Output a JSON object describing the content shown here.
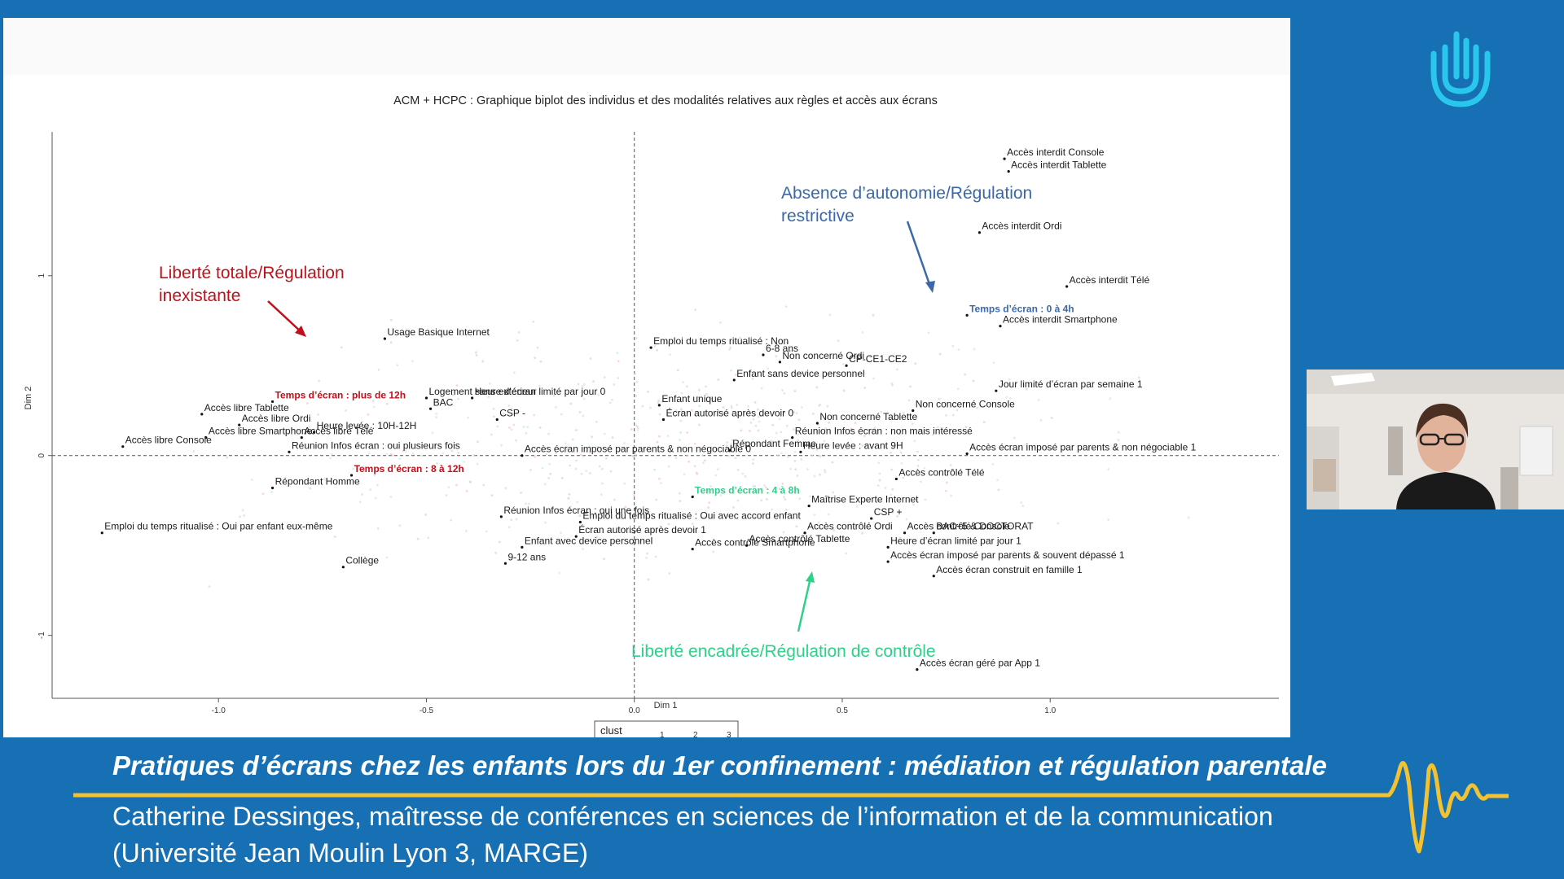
{
  "slide": {
    "chart_title": "ACM + HCPC : Graphique biplot des individus et des modalités relatives aux règles et accès aux écrans",
    "legend": {
      "title": "clust",
      "items": [
        "1",
        "2",
        "3"
      ]
    }
  },
  "annotations": {
    "red": {
      "line1": "Liberté totale/Régulation",
      "line2": "inexistante"
    },
    "blue": {
      "line1": "Absence d’autonomie/Régulation",
      "line2": "restrictive"
    },
    "green": {
      "line1": "Liberté encadrée/Régulation de contrôle"
    }
  },
  "colors": {
    "background": "#1670b3",
    "red": "#c0101a",
    "blue": "#3a68a8",
    "green": "#2fd08a",
    "gold": "#f2c232"
  },
  "chart_data": {
    "type": "scatter",
    "title": "ACM + HCPC : Graphique biplot des individus et des modalités relatives aux règles et accès aux écrans",
    "xlabel": "Dim 1",
    "ylabel": "Dim 2",
    "xlim": [
      -1.4,
      1.55
    ],
    "ylim": [
      -1.35,
      1.8
    ],
    "x_ticks": [
      "-1.0",
      "-0.5",
      "0.0",
      "0.5",
      "1.0"
    ],
    "y_ticks": [
      "-1",
      "0",
      "1"
    ],
    "legend": {
      "title": "clust",
      "items": [
        "1",
        "2",
        "3"
      ]
    },
    "points": [
      {
        "label": "Accès interdit Console",
        "x": 0.89,
        "y": 1.65
      },
      {
        "label": "Accès interdit Tablette",
        "x": 0.9,
        "y": 1.58
      },
      {
        "label": "Accès interdit Ordi",
        "x": 0.83,
        "y": 1.24
      },
      {
        "label": "Accès interdit Télé",
        "x": 1.04,
        "y": 0.94
      },
      {
        "label": "Temps d’écran : 0 à 4h",
        "x": 0.8,
        "y": 0.78,
        "color": "blue"
      },
      {
        "label": "Accès interdit Smartphone",
        "x": 0.88,
        "y": 0.72
      },
      {
        "label": "Jour limité d’écran par semaine 1",
        "x": 0.87,
        "y": 0.36
      },
      {
        "label": "Non concerné Console",
        "x": 0.67,
        "y": 0.25
      },
      {
        "label": "CP-CE1-CE2",
        "x": 0.51,
        "y": 0.5
      },
      {
        "label": "Non concerné Ordi",
        "x": 0.35,
        "y": 0.52
      },
      {
        "label": "6-8 ans",
        "x": 0.31,
        "y": 0.56
      },
      {
        "label": "Emploi du temps ritualisé : Non",
        "x": 0.04,
        "y": 0.6
      },
      {
        "label": "Enfant sans device personnel",
        "x": 0.24,
        "y": 0.42
      },
      {
        "label": "Enfant unique",
        "x": 0.06,
        "y": 0.28
      },
      {
        "label": "Écran autorisé après devoir 0",
        "x": 0.07,
        "y": 0.2
      },
      {
        "label": "Non concerné Tablette",
        "x": 0.44,
        "y": 0.18
      },
      {
        "label": "Réunion Infos écran : non mais intéressé",
        "x": 0.38,
        "y": 0.1
      },
      {
        "label": "Répondant Femme",
        "x": 0.23,
        "y": 0.03
      },
      {
        "label": "Heure levée : avant 9H",
        "x": 0.4,
        "y": 0.02
      },
      {
        "label": "Accès écran imposé par parents & non négociable 1",
        "x": 0.8,
        "y": 0.01
      },
      {
        "label": "Accès contrôlé Télé",
        "x": 0.63,
        "y": -0.13
      },
      {
        "label": "Maîtrise Experte Internet",
        "x": 0.42,
        "y": -0.28
      },
      {
        "label": "CSP +",
        "x": 0.57,
        "y": -0.35
      },
      {
        "label": "Accès contrôlé Ordi",
        "x": 0.41,
        "y": -0.43
      },
      {
        "label": "Accès contrôlé Console",
        "x": 0.65,
        "y": -0.43
      },
      {
        "label": "BAC+5 & DOCTORAT",
        "x": 0.72,
        "y": -0.43
      },
      {
        "label": "Accès contrôlé Tablette",
        "x": 0.27,
        "y": -0.5
      },
      {
        "label": "Heure d’écran limité par jour 1",
        "x": 0.61,
        "y": -0.51
      },
      {
        "label": "Accès contrôlé Smartphone",
        "x": 0.14,
        "y": -0.52
      },
      {
        "label": "Accès écran imposé par parents & souvent dépassé 1",
        "x": 0.61,
        "y": -0.59
      },
      {
        "label": "Accès écran construit en famille 1",
        "x": 0.72,
        "y": -0.67
      },
      {
        "label": "Temps d’écran : 4 à 8h",
        "x": 0.14,
        "y": -0.23,
        "color": "green"
      },
      {
        "label": "Emploi du temps ritualisé : Oui avec accord enfant",
        "x": -0.13,
        "y": -0.37
      },
      {
        "label": "Écran autorisé après devoir 1",
        "x": -0.14,
        "y": -0.45
      },
      {
        "label": "Accès écran géré par App 1",
        "x": 0.68,
        "y": -1.19
      },
      {
        "label": "Usage Basique Internet",
        "x": -0.6,
        "y": 0.65
      },
      {
        "label": "Logement sans extérieur",
        "x": -0.5,
        "y": 0.32
      },
      {
        "label": "Heure d’écran limité par jour 0",
        "x": -0.39,
        "y": 0.32
      },
      {
        "label": "BAC",
        "x": -0.49,
        "y": 0.26
      },
      {
        "label": "CSP -",
        "x": -0.33,
        "y": 0.2
      },
      {
        "label": "Accès écran imposé par parents & non négociable 0",
        "x": -0.27,
        "y": 0.0
      },
      {
        "label": "Temps d’écran : plus de 12h",
        "x": -0.87,
        "y": 0.3,
        "color": "red"
      },
      {
        "label": "Accès libre Tablette",
        "x": -1.04,
        "y": 0.23
      },
      {
        "label": "Accès libre Ordi",
        "x": -0.95,
        "y": 0.17
      },
      {
        "label": "Heure levée : 10H-12H",
        "x": -0.77,
        "y": 0.13
      },
      {
        "label": "Accès libre Smartphone",
        "x": -1.03,
        "y": 0.1
      },
      {
        "label": "Accès libre Télé",
        "x": -0.8,
        "y": 0.1
      },
      {
        "label": "Accès libre Console",
        "x": -1.23,
        "y": 0.05
      },
      {
        "label": "Réunion Infos écran : oui plusieurs fois",
        "x": -0.83,
        "y": 0.02
      },
      {
        "label": "Temps d’écran : 8 à 12h",
        "x": -0.68,
        "y": -0.11,
        "color": "red"
      },
      {
        "label": "Répondant Homme",
        "x": -0.87,
        "y": -0.18
      },
      {
        "label": "Réunion Infos écran : oui une fois",
        "x": -0.32,
        "y": -0.34
      },
      {
        "label": "Emploi du temps ritualisé : Oui par enfant eux-même",
        "x": -1.28,
        "y": -0.43
      },
      {
        "label": "Enfant avec device personnel",
        "x": -0.27,
        "y": -0.51
      },
      {
        "label": "9-12 ans",
        "x": -0.31,
        "y": -0.6
      },
      {
        "label": "Collège",
        "x": -0.7,
        "y": -0.62
      }
    ]
  },
  "lower_third": {
    "title": "Pratiques d’écrans chez les enfants lors du 1er confinement : médiation et régulation parentale",
    "speaker_line1": "Catherine Dessinges, maîtresse de conférences en sciences de l’information et de la communication",
    "speaker_line2": "(Université Jean Moulin Lyon 3, MARGE)"
  },
  "webcam": {
    "description_icon": "webcam-video-icon"
  },
  "logo": {
    "icon": "hand-logo-icon"
  }
}
